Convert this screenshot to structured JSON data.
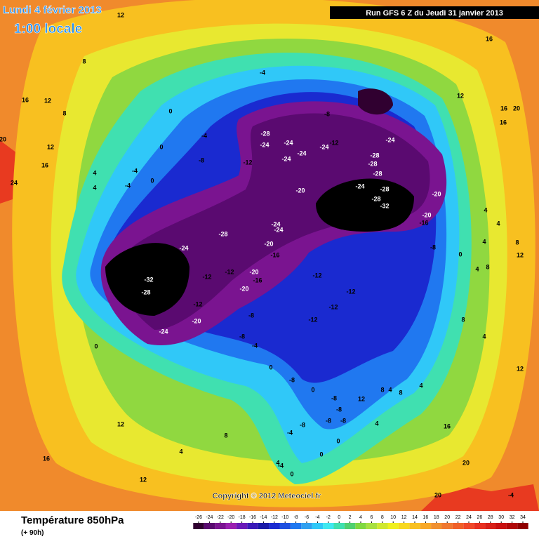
{
  "header": {
    "date": "Lundi 4 février 2013",
    "time": "1:00 locale",
    "run": "Run GFS 6 Z du Jeudi 31 janvier 2013"
  },
  "copyright": "Copyright © 2012 Meteociel.fr",
  "footer": {
    "title": "Température 850hPa",
    "lead": "(+ 90h)"
  },
  "colorbar": {
    "ticks": [
      -26,
      -24,
      -22,
      -20,
      -18,
      -16,
      -14,
      -12,
      -10,
      -8,
      -6,
      -4,
      -2,
      0,
      2,
      4,
      6,
      8,
      10,
      12,
      14,
      16,
      18,
      20,
      22,
      24,
      26,
      28,
      30,
      32,
      34
    ],
    "colors": [
      "#300030",
      "#5a0a70",
      "#7a1490",
      "#9a20b0",
      "#6a1ab8",
      "#3a1ab8",
      "#1a1aa8",
      "#1a2ad0",
      "#1e50e0",
      "#2078f0",
      "#30a0f0",
      "#30c8f8",
      "#40e8f0",
      "#40e0b0",
      "#50d070",
      "#80d840",
      "#a8e040",
      "#d0e830",
      "#f0f020",
      "#f8d820",
      "#f8c020",
      "#f8a828",
      "#f09030",
      "#f07830",
      "#f06028",
      "#f04828",
      "#e83020",
      "#d82018",
      "#c81010",
      "#b00808",
      "#900000"
    ]
  },
  "contour_labels": [
    -32,
    -28,
    -24,
    -24,
    -28,
    -12,
    -12,
    -20,
    -16,
    -20,
    -12,
    -20,
    -8,
    -8,
    -4,
    0,
    0,
    -20,
    -16,
    -24,
    -24,
    -20,
    -12,
    -12,
    -12,
    -12,
    -28,
    -24,
    -24,
    -24,
    -24,
    -24,
    -12,
    -12,
    -28,
    -28,
    -28,
    -24,
    -28,
    -28,
    -32,
    -24,
    -20,
    -20,
    -16,
    -8,
    -8,
    -4,
    0,
    0,
    -4,
    -8,
    -4,
    -4,
    0,
    4,
    4,
    8,
    12,
    12,
    16,
    16,
    12,
    16,
    20,
    16,
    20,
    24,
    12,
    16,
    8,
    4,
    4,
    0,
    4,
    8,
    4,
    8,
    12,
    8,
    4,
    12,
    12,
    8,
    4,
    16,
    12,
    4,
    0,
    -4,
    0,
    -4,
    -8,
    -8,
    -8,
    -8,
    -8,
    0,
    4,
    8,
    4,
    8,
    4,
    12,
    16,
    20,
    20,
    -4,
    -8,
    0
  ]
}
